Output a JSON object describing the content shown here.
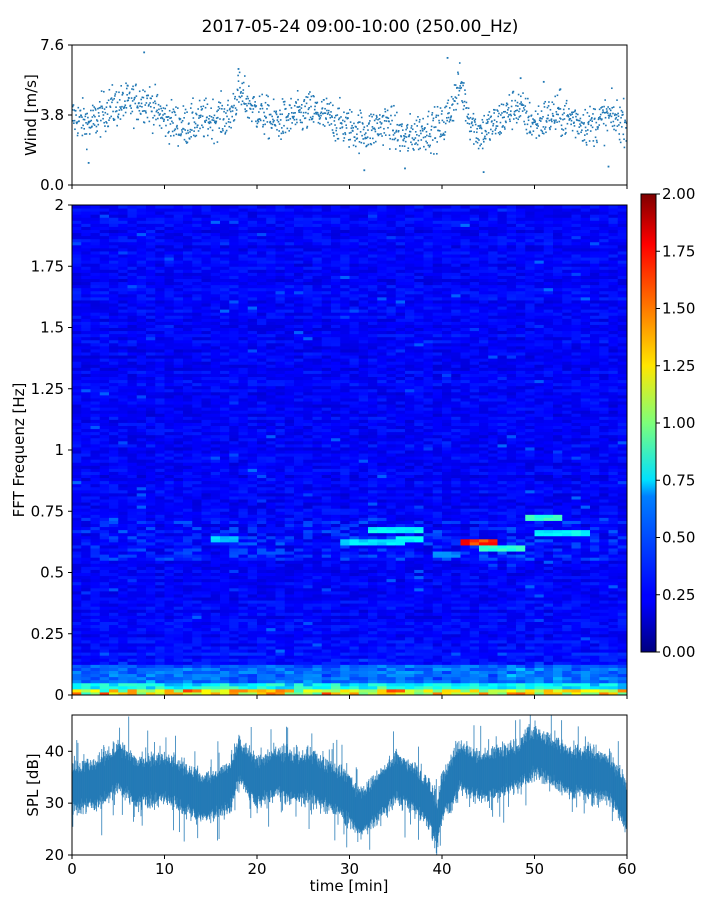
{
  "figure": {
    "title": "2017-05-24 09:00-10:00 (250.00_Hz)"
  },
  "chart_data": [
    {
      "type": "scatter",
      "name": "wind",
      "ylabel": "Wind [m/s]",
      "xlim": [
        0,
        60
      ],
      "ylim": [
        0,
        7.6
      ],
      "yticks": [
        "0.0",
        "3.8",
        "7.6"
      ],
      "color": "#1f77b4",
      "trend": [
        [
          0,
          3.7
        ],
        [
          2,
          3.3
        ],
        [
          4,
          4.2
        ],
        [
          6,
          4.4
        ],
        [
          8,
          4.6
        ],
        [
          10,
          3.6
        ],
        [
          12,
          3.2
        ],
        [
          14,
          3.5
        ],
        [
          16,
          3.7
        ],
        [
          17,
          3.6
        ],
        [
          18,
          5.0
        ],
        [
          20,
          4.0
        ],
        [
          22,
          3.4
        ],
        [
          24,
          3.7
        ],
        [
          26,
          4.0
        ],
        [
          28,
          3.6
        ],
        [
          30,
          3.1
        ],
        [
          32,
          2.9
        ],
        [
          34,
          3.4
        ],
        [
          36,
          2.5
        ],
        [
          38,
          3.0
        ],
        [
          40,
          3.1
        ],
        [
          41,
          4.2
        ],
        [
          42,
          5.5
        ],
        [
          43,
          3.6
        ],
        [
          44,
          2.8
        ],
        [
          46,
          3.4
        ],
        [
          48,
          4.3
        ],
        [
          50,
          3.3
        ],
        [
          52,
          3.8
        ],
        [
          54,
          3.6
        ],
        [
          56,
          3.2
        ],
        [
          58,
          3.7
        ],
        [
          60,
          3.4
        ]
      ],
      "peaks": [
        [
          6,
          5.4
        ],
        [
          7.8,
          7.2
        ],
        [
          18,
          6.3
        ],
        [
          40.6,
          6.9
        ],
        [
          48.5,
          5.8
        ],
        [
          51,
          5.6
        ],
        [
          52.8,
          5.2
        ]
      ],
      "lows": [
        [
          1.8,
          1.2
        ],
        [
          31.6,
          0.8
        ],
        [
          36,
          0.9
        ],
        [
          44.5,
          0.7
        ],
        [
          58,
          1.0
        ]
      ]
    },
    {
      "type": "heatmap",
      "name": "spectrogram",
      "ylabel": "FFT Frequenz [Hz]",
      "xlim": [
        0,
        60
      ],
      "ylim": [
        0,
        2
      ],
      "yticks": [
        "0",
        "0.25",
        "0.5",
        "0.75",
        "1",
        "1.25",
        "1.5",
        "1.75",
        "2"
      ],
      "colormap": "jet",
      "colorbar": {
        "range": [
          0,
          2
        ],
        "ticks": [
          "0.00",
          "0.25",
          "0.50",
          "0.75",
          "1.00",
          "1.25",
          "1.50",
          "1.75",
          "2.00"
        ]
      },
      "features": [
        {
          "x": [
            29,
            36
          ],
          "f": 0.63,
          "level": 0.75
        },
        {
          "x": [
            32,
            38
          ],
          "f": 0.68,
          "level": 0.8
        },
        {
          "x": [
            35,
            38
          ],
          "f": 0.64,
          "level": 0.8
        },
        {
          "x": [
            42,
            46
          ],
          "f": 0.62,
          "level": 1.8
        },
        {
          "x": [
            44,
            49
          ],
          "f": 0.6,
          "level": 0.9
        },
        {
          "x": [
            49,
            53
          ],
          "f": 0.73,
          "level": 0.9
        },
        {
          "x": [
            50,
            56
          ],
          "f": 0.66,
          "level": 0.8
        },
        {
          "x": [
            15,
            18
          ],
          "f": 0.64,
          "level": 0.7
        },
        {
          "x": [
            39,
            42
          ],
          "f": 0.57,
          "level": 0.55
        }
      ]
    },
    {
      "type": "area",
      "name": "spl",
      "ylabel": "SPL [dB]",
      "xlabel": "time [min]",
      "xlim": [
        0,
        60
      ],
      "ylim": [
        20,
        47
      ],
      "yticks": [
        "20",
        "30",
        "40"
      ],
      "xticks": [
        "0",
        "10",
        "20",
        "30",
        "40",
        "50",
        "60"
      ],
      "color": "#1f77b4",
      "trend": [
        [
          0,
          33
        ],
        [
          3,
          34
        ],
        [
          5,
          37
        ],
        [
          7,
          34
        ],
        [
          10,
          35
        ],
        [
          12,
          33
        ],
        [
          14,
          31
        ],
        [
          16,
          32
        ],
        [
          17,
          33
        ],
        [
          18,
          38
        ],
        [
          20,
          34
        ],
        [
          22,
          36
        ],
        [
          24,
          35
        ],
        [
          26,
          35
        ],
        [
          28,
          33
        ],
        [
          30,
          31
        ],
        [
          31,
          28
        ],
        [
          33,
          31
        ],
        [
          35,
          35
        ],
        [
          37,
          33
        ],
        [
          38.5,
          30
        ],
        [
          39.5,
          26
        ],
        [
          40,
          31
        ],
        [
          42,
          37
        ],
        [
          44,
          35
        ],
        [
          46,
          36
        ],
        [
          48,
          37
        ],
        [
          50,
          40
        ],
        [
          52,
          38
        ],
        [
          54,
          36
        ],
        [
          56,
          36
        ],
        [
          58,
          35
        ],
        [
          59.5,
          31
        ],
        [
          60,
          29
        ]
      ]
    }
  ]
}
